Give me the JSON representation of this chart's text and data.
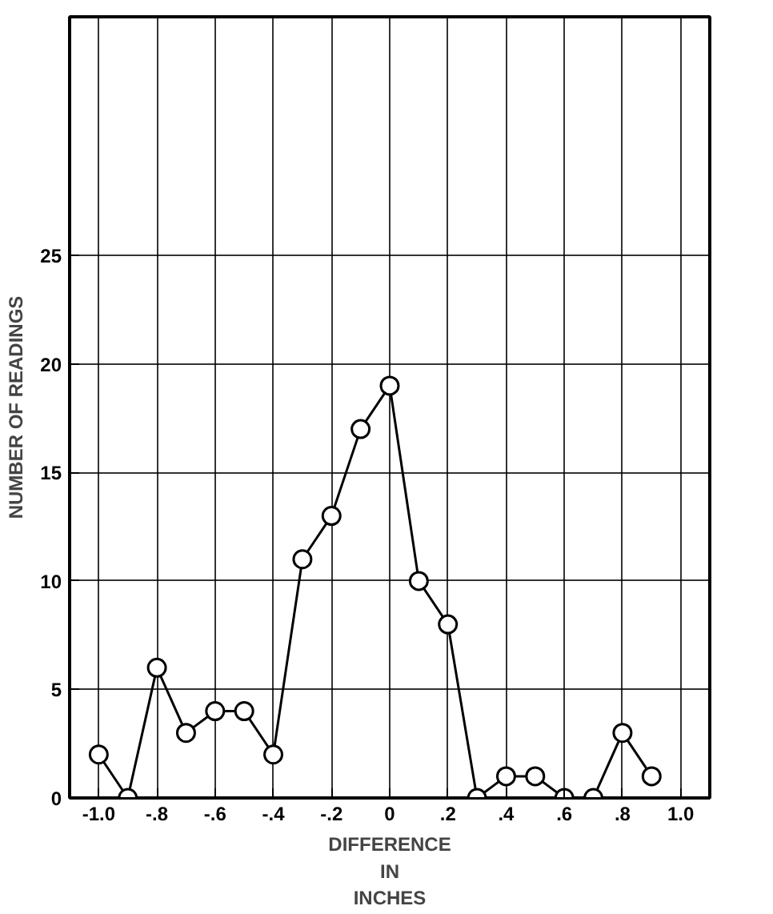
{
  "chart_data": {
    "type": "line",
    "xlabel": "DIFFERENCE\nIN\nINCHES",
    "ylabel": "NUMBER OF READINGS",
    "x": [
      -1.0,
      -0.9,
      -0.8,
      -0.7,
      -0.6,
      -0.5,
      -0.4,
      -0.3,
      -0.2,
      -0.1,
      0,
      0.1,
      0.2,
      0.3,
      0.4,
      0.5,
      0.6,
      0.7,
      0.8,
      0.9
    ],
    "series": [
      {
        "color": "#000000",
        "values": [
          2,
          0,
          6,
          3,
          4,
          4,
          2,
          11,
          13,
          17,
          19,
          10,
          8,
          0,
          1,
          1,
          0,
          0,
          3,
          1
        ]
      }
    ],
    "xlim": [
      -1.1,
      1.1
    ],
    "ylim": [
      0,
      36
    ],
    "xticks": [
      {
        "value": -1.0,
        "label": "-1.0"
      },
      {
        "value": -0.8,
        "label": "-.8"
      },
      {
        "value": -0.6,
        "label": "-.6"
      },
      {
        "value": -0.4,
        "label": "-.4"
      },
      {
        "value": -0.2,
        "label": "-.2"
      },
      0,
      {
        "value": 0.2,
        "label": ".2"
      },
      {
        "value": 0.4,
        "label": ".4"
      },
      {
        "value": 0.6,
        "label": ".6"
      },
      {
        "value": 0.8,
        "label": ".8"
      },
      {
        "value": 1.0,
        "label": "1.0"
      }
    ],
    "yticks": [
      0,
      5,
      10,
      15,
      20,
      25
    ],
    "grid": true,
    "marker": "circle",
    "line_style": "solid"
  }
}
